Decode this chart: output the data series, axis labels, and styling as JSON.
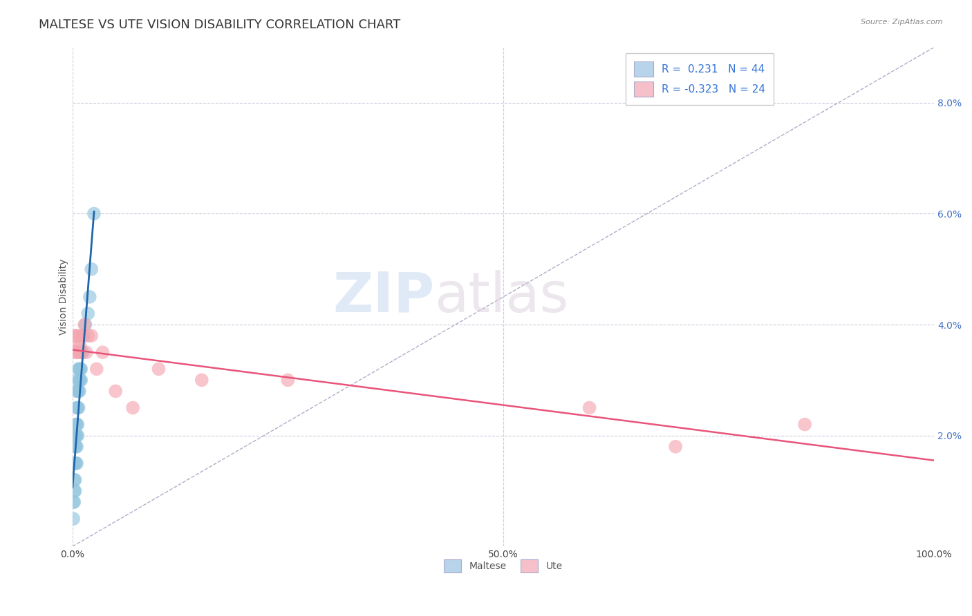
{
  "title": "MALTESE VS UTE VISION DISABILITY CORRELATION CHART",
  "source": "Source: ZipAtlas.com",
  "ylabel": "Vision Disability",
  "xlim": [
    0,
    1.0
  ],
  "ylim": [
    0.0,
    0.09
  ],
  "xticks": [
    0.0,
    0.1,
    0.2,
    0.3,
    0.4,
    0.5,
    0.6,
    0.7,
    0.8,
    0.9,
    1.0
  ],
  "xticklabels": [
    "0.0%",
    "",
    "",
    "",
    "",
    "50.0%",
    "",
    "",
    "",
    "",
    "100.0%"
  ],
  "yticks": [
    0.02,
    0.04,
    0.06,
    0.08
  ],
  "yticklabels": [
    "2.0%",
    "4.0%",
    "6.0%",
    "8.0%"
  ],
  "blue_color": "#92c5de",
  "pink_color": "#f4a6b0",
  "blue_line_color": "#2166ac",
  "pink_line_color": "#e8547a",
  "ref_line_color": "#9999bb",
  "legend_text_color": "#3575d5",
  "ytick_color": "#4472c4",
  "xtick_color": "#444444",
  "watermark_zip": "ZIP",
  "watermark_atlas": "atlas",
  "title_fontsize": 13,
  "axis_fontsize": 10,
  "tick_fontsize": 10,
  "maltese_x": [
    0.001,
    0.001,
    0.002,
    0.002,
    0.002,
    0.002,
    0.003,
    0.003,
    0.003,
    0.003,
    0.003,
    0.004,
    0.004,
    0.004,
    0.004,
    0.005,
    0.005,
    0.005,
    0.005,
    0.005,
    0.005,
    0.006,
    0.006,
    0.006,
    0.006,
    0.006,
    0.007,
    0.007,
    0.007,
    0.008,
    0.008,
    0.008,
    0.009,
    0.009,
    0.01,
    0.01,
    0.011,
    0.012,
    0.013,
    0.015,
    0.018,
    0.02,
    0.022,
    0.025
  ],
  "maltese_y": [
    0.005,
    0.008,
    0.008,
    0.01,
    0.012,
    0.015,
    0.01,
    0.012,
    0.015,
    0.018,
    0.02,
    0.015,
    0.018,
    0.02,
    0.022,
    0.015,
    0.018,
    0.02,
    0.022,
    0.025,
    0.028,
    0.02,
    0.022,
    0.025,
    0.028,
    0.03,
    0.025,
    0.028,
    0.032,
    0.028,
    0.03,
    0.032,
    0.03,
    0.032,
    0.03,
    0.032,
    0.035,
    0.035,
    0.038,
    0.04,
    0.042,
    0.045,
    0.05,
    0.06
  ],
  "ute_x": [
    0.002,
    0.003,
    0.004,
    0.005,
    0.006,
    0.007,
    0.008,
    0.009,
    0.01,
    0.012,
    0.014,
    0.016,
    0.018,
    0.022,
    0.028,
    0.035,
    0.05,
    0.07,
    0.1,
    0.15,
    0.25,
    0.6,
    0.7,
    0.85
  ],
  "ute_y": [
    0.038,
    0.035,
    0.038,
    0.035,
    0.036,
    0.038,
    0.035,
    0.036,
    0.035,
    0.038,
    0.04,
    0.035,
    0.038,
    0.038,
    0.032,
    0.035,
    0.028,
    0.025,
    0.032,
    0.03,
    0.03,
    0.025,
    0.018,
    0.022
  ],
  "background_color": "#ffffff",
  "grid_color": "#ccccdd",
  "legend_r1_label": "R =  0.231   N = 44",
  "legend_r2_label": "R = -0.323   N = 24",
  "bottom_legend_labels": [
    "Maltese",
    "Ute"
  ]
}
